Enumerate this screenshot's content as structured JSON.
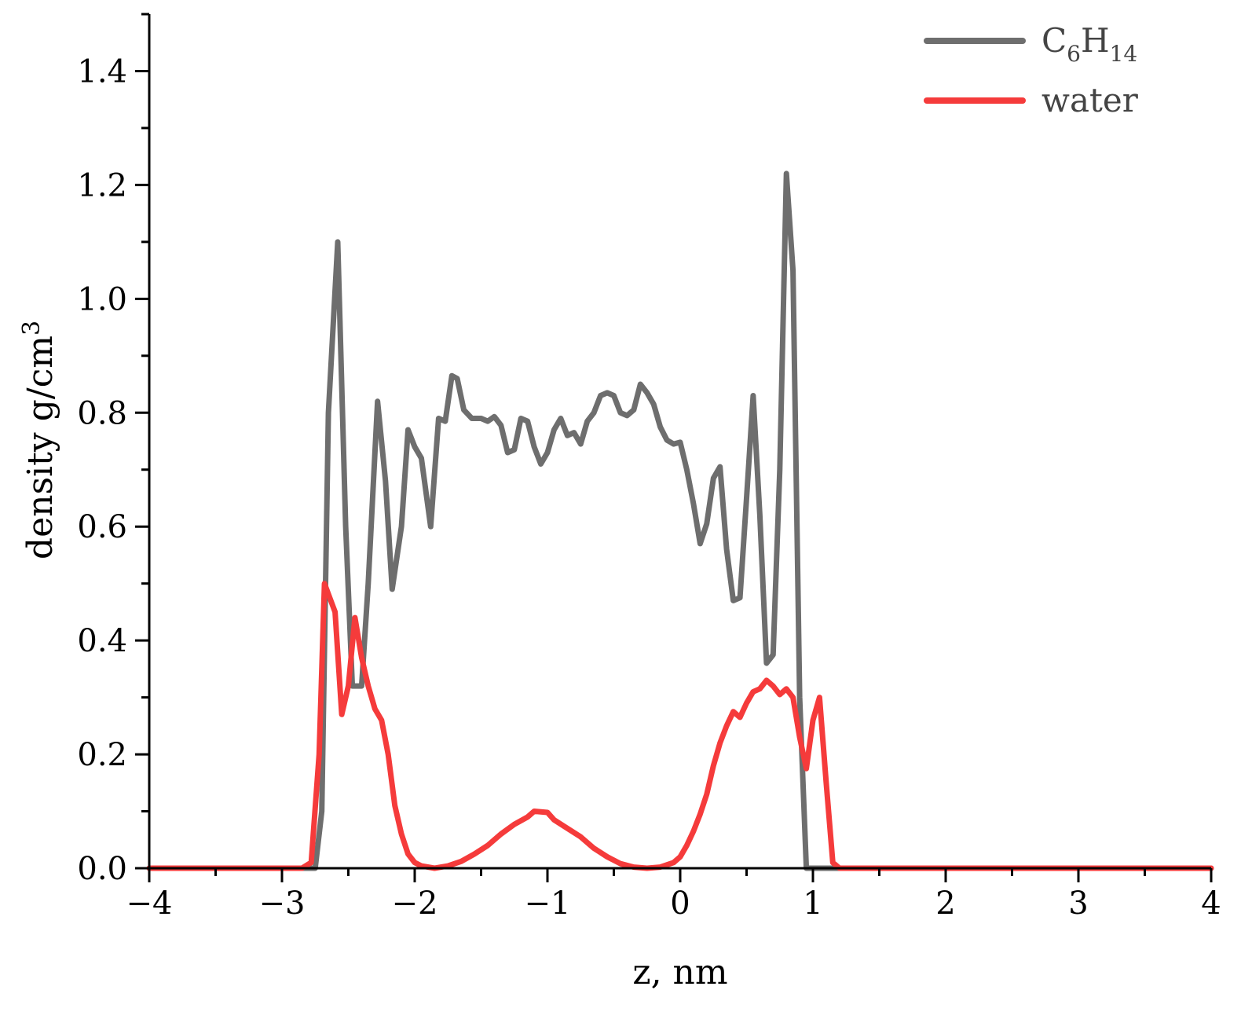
{
  "chart_data": {
    "type": "line",
    "xlabel": "z, nm",
    "ylabel": "density g/cm",
    "ylabel_superscript": "3",
    "xlim": [
      -4,
      4
    ],
    "ylim": [
      0,
      1.5
    ],
    "x_ticks": [
      "−4",
      "−3",
      "−2",
      "−1",
      "0",
      "1",
      "2",
      "3",
      "4"
    ],
    "y_ticks": [
      "0.0",
      "0.2",
      "0.4",
      "0.6",
      "0.8",
      "1.0",
      "1.2",
      "1.4"
    ],
    "grid": false,
    "legend_position": "top-right",
    "legend": [
      {
        "base1": "C",
        "sub1": "6",
        "base2": "H",
        "sub2": "14"
      },
      {
        "text": "water"
      }
    ],
    "series": [
      {
        "name": "C6H14",
        "color": "#6e6e6e",
        "points": [
          [
            -4.0,
            0.0
          ],
          [
            -2.8,
            0.0
          ],
          [
            -2.75,
            0.0
          ],
          [
            -2.7,
            0.1
          ],
          [
            -2.65,
            0.8
          ],
          [
            -2.58,
            1.1
          ],
          [
            -2.52,
            0.6
          ],
          [
            -2.47,
            0.32
          ],
          [
            -2.4,
            0.32
          ],
          [
            -2.35,
            0.5
          ],
          [
            -2.28,
            0.82
          ],
          [
            -2.22,
            0.68
          ],
          [
            -2.17,
            0.49
          ],
          [
            -2.1,
            0.6
          ],
          [
            -2.05,
            0.77
          ],
          [
            -2.0,
            0.74
          ],
          [
            -1.95,
            0.72
          ],
          [
            -1.88,
            0.6
          ],
          [
            -1.82,
            0.79
          ],
          [
            -1.77,
            0.785
          ],
          [
            -1.72,
            0.865
          ],
          [
            -1.68,
            0.86
          ],
          [
            -1.63,
            0.805
          ],
          [
            -1.57,
            0.79
          ],
          [
            -1.5,
            0.79
          ],
          [
            -1.45,
            0.785
          ],
          [
            -1.4,
            0.793
          ],
          [
            -1.35,
            0.778
          ],
          [
            -1.3,
            0.73
          ],
          [
            -1.25,
            0.735
          ],
          [
            -1.2,
            0.79
          ],
          [
            -1.15,
            0.785
          ],
          [
            -1.1,
            0.74
          ],
          [
            -1.05,
            0.71
          ],
          [
            -1.0,
            0.73
          ],
          [
            -0.95,
            0.77
          ],
          [
            -0.9,
            0.79
          ],
          [
            -0.85,
            0.76
          ],
          [
            -0.8,
            0.765
          ],
          [
            -0.75,
            0.745
          ],
          [
            -0.7,
            0.785
          ],
          [
            -0.65,
            0.8
          ],
          [
            -0.6,
            0.83
          ],
          [
            -0.55,
            0.835
          ],
          [
            -0.5,
            0.83
          ],
          [
            -0.45,
            0.8
          ],
          [
            -0.4,
            0.795
          ],
          [
            -0.35,
            0.805
          ],
          [
            -0.3,
            0.85
          ],
          [
            -0.25,
            0.835
          ],
          [
            -0.2,
            0.815
          ],
          [
            -0.15,
            0.775
          ],
          [
            -0.1,
            0.752
          ],
          [
            -0.05,
            0.745
          ],
          [
            0.0,
            0.748
          ],
          [
            0.05,
            0.7
          ],
          [
            0.1,
            0.64
          ],
          [
            0.15,
            0.57
          ],
          [
            0.2,
            0.605
          ],
          [
            0.25,
            0.685
          ],
          [
            0.3,
            0.705
          ],
          [
            0.35,
            0.56
          ],
          [
            0.4,
            0.47
          ],
          [
            0.45,
            0.475
          ],
          [
            0.5,
            0.65
          ],
          [
            0.55,
            0.83
          ],
          [
            0.6,
            0.62
          ],
          [
            0.65,
            0.36
          ],
          [
            0.7,
            0.375
          ],
          [
            0.75,
            0.7
          ],
          [
            0.8,
            1.22
          ],
          [
            0.85,
            1.05
          ],
          [
            0.9,
            0.3
          ],
          [
            0.95,
            0.0
          ],
          [
            1.0,
            0.0
          ],
          [
            4.0,
            0.0
          ]
        ]
      },
      {
        "name": "water",
        "color": "#f53b3b",
        "points": [
          [
            -4.0,
            0.0
          ],
          [
            -2.85,
            0.0
          ],
          [
            -2.78,
            0.01
          ],
          [
            -2.72,
            0.2
          ],
          [
            -2.68,
            0.5
          ],
          [
            -2.6,
            0.45
          ],
          [
            -2.55,
            0.27
          ],
          [
            -2.5,
            0.32
          ],
          [
            -2.45,
            0.44
          ],
          [
            -2.4,
            0.37
          ],
          [
            -2.35,
            0.32
          ],
          [
            -2.3,
            0.28
          ],
          [
            -2.25,
            0.26
          ],
          [
            -2.2,
            0.2
          ],
          [
            -2.15,
            0.11
          ],
          [
            -2.1,
            0.06
          ],
          [
            -2.05,
            0.025
          ],
          [
            -2.0,
            0.01
          ],
          [
            -1.95,
            0.004
          ],
          [
            -1.85,
            0.0
          ],
          [
            -1.75,
            0.004
          ],
          [
            -1.65,
            0.012
          ],
          [
            -1.55,
            0.025
          ],
          [
            -1.45,
            0.04
          ],
          [
            -1.35,
            0.06
          ],
          [
            -1.25,
            0.077
          ],
          [
            -1.15,
            0.09
          ],
          [
            -1.1,
            0.1
          ],
          [
            -1.0,
            0.098
          ],
          [
            -0.95,
            0.085
          ],
          [
            -0.85,
            0.07
          ],
          [
            -0.75,
            0.055
          ],
          [
            -0.65,
            0.035
          ],
          [
            -0.55,
            0.02
          ],
          [
            -0.45,
            0.008
          ],
          [
            -0.35,
            0.002
          ],
          [
            -0.25,
            0.0
          ],
          [
            -0.15,
            0.002
          ],
          [
            -0.05,
            0.01
          ],
          [
            0.0,
            0.02
          ],
          [
            0.05,
            0.04
          ],
          [
            0.1,
            0.065
          ],
          [
            0.15,
            0.095
          ],
          [
            0.2,
            0.13
          ],
          [
            0.25,
            0.18
          ],
          [
            0.3,
            0.22
          ],
          [
            0.35,
            0.25
          ],
          [
            0.4,
            0.275
          ],
          [
            0.45,
            0.265
          ],
          [
            0.5,
            0.29
          ],
          [
            0.55,
            0.31
          ],
          [
            0.6,
            0.315
          ],
          [
            0.65,
            0.33
          ],
          [
            0.7,
            0.32
          ],
          [
            0.75,
            0.305
          ],
          [
            0.8,
            0.315
          ],
          [
            0.85,
            0.3
          ],
          [
            0.9,
            0.23
          ],
          [
            0.95,
            0.175
          ],
          [
            1.0,
            0.26
          ],
          [
            1.05,
            0.3
          ],
          [
            1.1,
            0.15
          ],
          [
            1.15,
            0.01
          ],
          [
            1.2,
            0.0
          ],
          [
            4.0,
            0.0
          ]
        ]
      }
    ]
  }
}
